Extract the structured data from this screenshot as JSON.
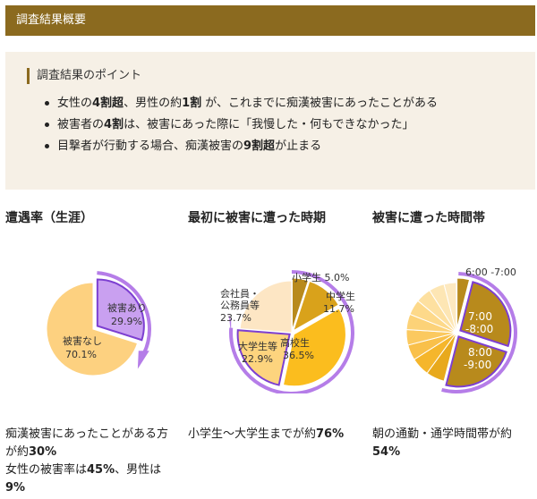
{
  "header": {
    "title": "調査結果概要"
  },
  "points": {
    "title": "調査結果のポイント",
    "items": [
      {
        "a": "女性の",
        "b1": "4割超",
        "c": "、男性の約",
        "b2": "1割",
        "d": " が、これまでに痴漢被害にあったことがある"
      },
      {
        "a": "被害者の",
        "b1": "4割",
        "c": "は、被害にあった際に「我慢した・何もできなかった」",
        "b2": "",
        "d": ""
      },
      {
        "a": "目撃者が行動する場合、痴漢被害の",
        "b1": "9割超",
        "c": "が止まる",
        "b2": "",
        "d": ""
      }
    ]
  },
  "col1": {
    "title": "遭遇率（生涯）"
  },
  "col2": {
    "title": "最初に被害に遭った時期"
  },
  "col3": {
    "title": "被害に遭った時間帯"
  },
  "chart_data": [
    {
      "type": "pie",
      "title": "遭遇率（生涯）",
      "slices": [
        {
          "label": "被害あり",
          "value": 29.9,
          "value_label": "29.9%",
          "color": "#c9a0f0"
        },
        {
          "label": "被害なし",
          "value": 70.1,
          "value_label": "70.1%",
          "color": "#fdd180"
        }
      ]
    },
    {
      "type": "pie",
      "title": "最初に被害に遭った時期",
      "slices": [
        {
          "label": "小学生",
          "value": 5.0,
          "value_label": "5.0%",
          "color": "#b88a1c"
        },
        {
          "label": "中学生",
          "value": 11.7,
          "value_label": "11.7%",
          "color": "#d9a21b"
        },
        {
          "label": "高校生",
          "value": 36.5,
          "value_label": "36.5%",
          "color": "#fbbd1e"
        },
        {
          "label": "大学生等",
          "value": 22.9,
          "value_label": "22.9%",
          "color": "#fdd47e"
        },
        {
          "label": "会社員・公務員等",
          "value": 23.7,
          "value_label": "23.7%",
          "color": "#fde6c4"
        }
      ]
    },
    {
      "type": "pie",
      "title": "被害に遭った時間帯",
      "slices": [
        {
          "label": "6:00 -7:00",
          "value": 4,
          "color": "#b88a1c"
        },
        {
          "label": "7:00 -8:00",
          "value": 26,
          "color": "#b88a1c"
        },
        {
          "label": "8:00 -9:00",
          "value": 24,
          "color": "#b88a1c"
        },
        {
          "label": "",
          "value": 6,
          "color": "#e8a91c"
        },
        {
          "label": "",
          "value": 6,
          "color": "#f5b62c"
        },
        {
          "label": "",
          "value": 5,
          "color": "#f9c04a"
        },
        {
          "label": "",
          "value": 5,
          "color": "#fbc95f"
        },
        {
          "label": "",
          "value": 5,
          "color": "#fcd278"
        },
        {
          "label": "",
          "value": 5,
          "color": "#fdd98a"
        },
        {
          "label": "",
          "value": 5,
          "color": "#fde0a0"
        },
        {
          "label": "",
          "value": 5,
          "color": "#fde6b4"
        },
        {
          "label": "",
          "value": 4,
          "color": "#fde9c0"
        }
      ]
    }
  ],
  "captions": {
    "col1": {
      "line1": "痴漢被害にあったことがある方",
      "line2a": "が約",
      "line2b": "30%",
      "line3a": "女性の被害率は",
      "line3b": "45%",
      "line3c": "、男性は",
      "line4": "9%"
    },
    "col2": {
      "a": "小学生～大学生までが約",
      "b": "76%"
    },
    "col3": {
      "line1": "朝の通勤・通学時間帯が約",
      "line2": "54%"
    }
  }
}
